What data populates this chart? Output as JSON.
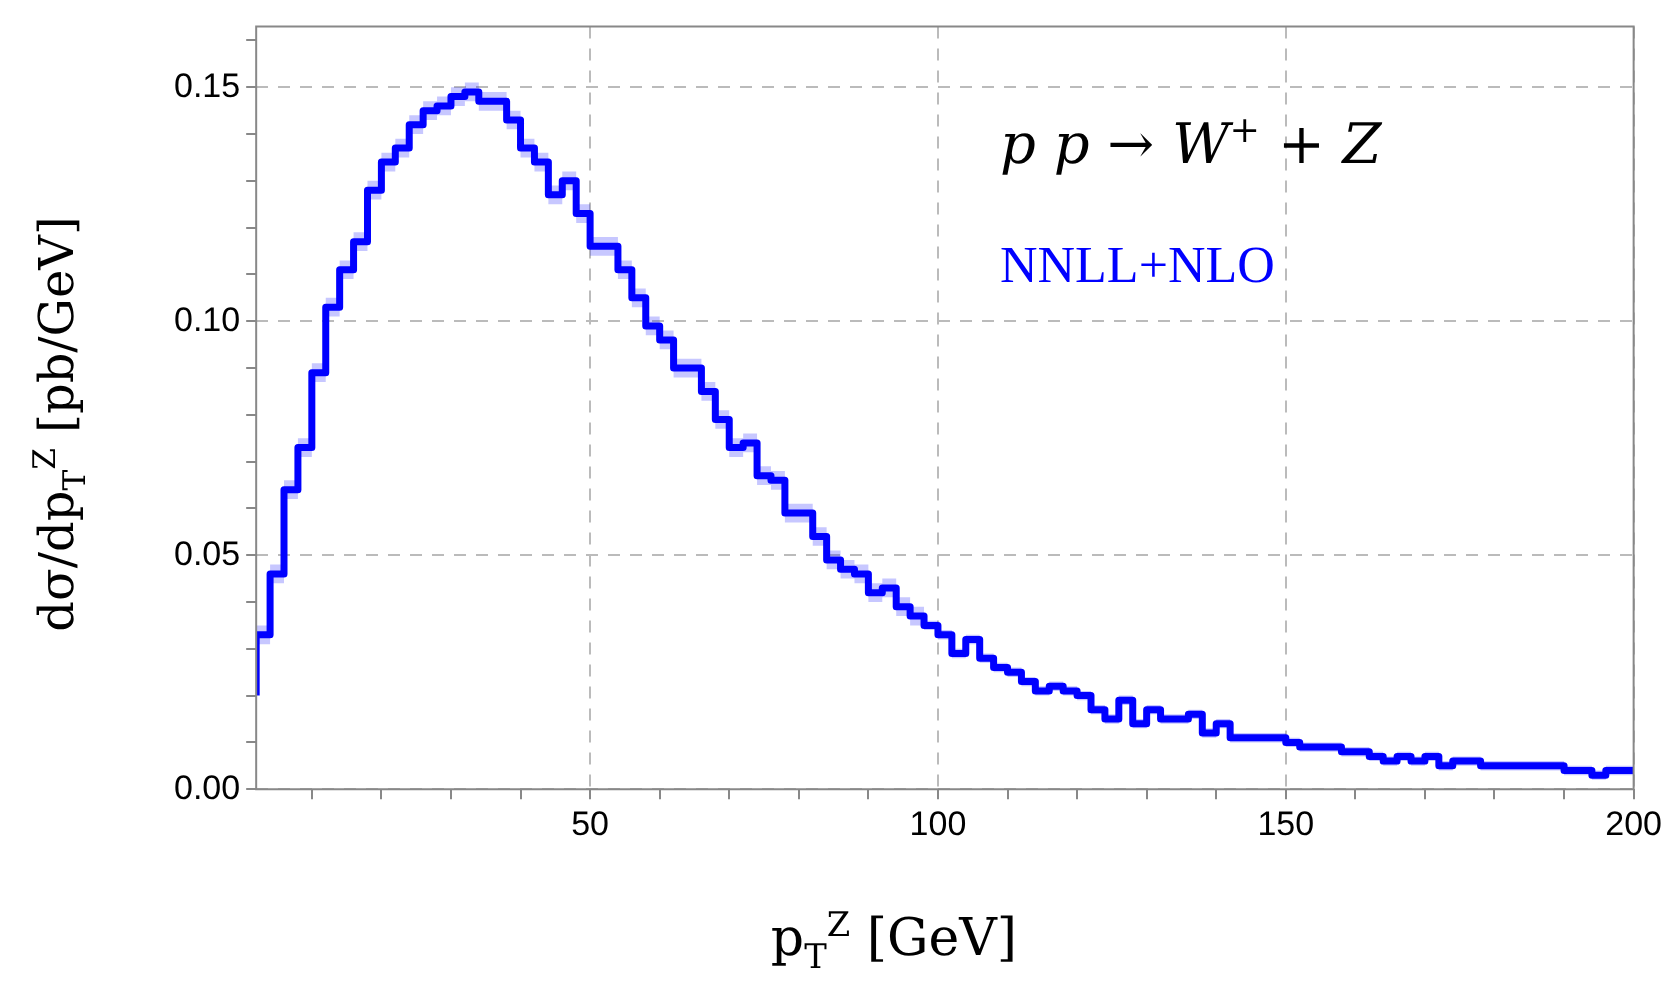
{
  "chart_data": {
    "type": "step",
    "xlabel": "p$_{T}$$^{Z}$ [GeV]",
    "ylabel": "dσ/dp$_{T}$$^{Z}$ [pb/GeV]",
    "annotations": [
      "p p → W$^{+}$ + Z"
    ],
    "legend": "top right",
    "x": [
      2,
      4,
      6,
      8,
      10,
      12,
      14,
      16,
      18,
      20,
      22,
      24,
      26,
      28,
      30,
      32,
      34,
      36,
      38,
      40,
      42,
      44,
      46,
      48,
      50,
      52,
      54,
      56,
      58,
      60,
      62,
      64,
      66,
      68,
      70,
      72,
      74,
      76,
      78,
      80,
      82,
      84,
      86,
      88,
      90,
      92,
      94,
      96,
      98,
      100,
      102,
      104,
      106,
      108,
      110,
      112,
      114,
      116,
      118,
      120,
      122,
      124,
      126,
      128,
      130,
      132,
      134,
      136,
      138,
      140,
      142,
      144,
      146,
      148,
      150,
      152,
      154,
      156,
      158,
      160,
      162,
      164,
      166,
      168,
      170,
      172,
      174,
      176,
      178,
      180,
      182,
      184,
      186,
      188,
      190,
      192,
      194,
      196,
      198,
      200
    ],
    "series": [
      {
        "name": "NNLL+NLO",
        "color": "#0000ff",
        "values": [
          0.02,
          0.033,
          0.046,
          0.064,
          0.073,
          0.089,
          0.103,
          0.111,
          0.117,
          0.128,
          0.134,
          0.137,
          0.142,
          0.145,
          0.146,
          0.148,
          0.149,
          0.147,
          0.147,
          0.143,
          0.137,
          0.134,
          0.127,
          0.13,
          0.123,
          0.116,
          0.116,
          0.111,
          0.105,
          0.099,
          0.096,
          0.09,
          0.09,
          0.085,
          0.079,
          0.073,
          0.074,
          0.067,
          0.066,
          0.059,
          0.059,
          0.054,
          0.049,
          0.047,
          0.046,
          0.042,
          0.043,
          0.039,
          0.037,
          0.035,
          0.033,
          0.029,
          0.032,
          0.028,
          0.026,
          0.025,
          0.023,
          0.021,
          0.022,
          0.021,
          0.02,
          0.017,
          0.015,
          0.019,
          0.014,
          0.017,
          0.015,
          0.015,
          0.016,
          0.012,
          0.014,
          0.011,
          0.011,
          0.011,
          0.011,
          0.01,
          0.009,
          0.009,
          0.009,
          0.008,
          0.008,
          0.007,
          0.006,
          0.007,
          0.006,
          0.007,
          0.005,
          0.006,
          0.006,
          0.005,
          0.005,
          0.005,
          0.005,
          0.005,
          0.005,
          0.004,
          0.004,
          0.003,
          0.004,
          0.004
        ],
        "lower": [
          0.018,
          0.031,
          0.044,
          0.062,
          0.071,
          0.087,
          0.101,
          0.109,
          0.115,
          0.126,
          0.132,
          0.135,
          0.14,
          0.143,
          0.144,
          0.146,
          0.147,
          0.145,
          0.145,
          0.141,
          0.135,
          0.132,
          0.125,
          0.128,
          0.121,
          0.114,
          0.114,
          0.109,
          0.103,
          0.097,
          0.094,
          0.088,
          0.088,
          0.083,
          0.077,
          0.071,
          0.072,
          0.065,
          0.064,
          0.057,
          0.057,
          0.052,
          0.047,
          0.045,
          0.044,
          0.04,
          0.041,
          0.037,
          0.035,
          0.034,
          0.032,
          0.028,
          0.031,
          0.027,
          0.025,
          0.024,
          0.022,
          0.02,
          0.021,
          0.02,
          0.019,
          0.016,
          0.014,
          0.018,
          0.013,
          0.016,
          0.014,
          0.014,
          0.015,
          0.011,
          0.013,
          0.01,
          0.01,
          0.01,
          0.01,
          0.009,
          0.008,
          0.008,
          0.008,
          0.007,
          0.007,
          0.006,
          0.005,
          0.006,
          0.005,
          0.006,
          0.004,
          0.005,
          0.005,
          0.004,
          0.004,
          0.004,
          0.004,
          0.004,
          0.004,
          0.003,
          0.003,
          0.002,
          0.003,
          0.003
        ],
        "upper": [
          0.022,
          0.035,
          0.048,
          0.066,
          0.075,
          0.091,
          0.105,
          0.113,
          0.119,
          0.13,
          0.136,
          0.139,
          0.144,
          0.147,
          0.148,
          0.15,
          0.151,
          0.149,
          0.149,
          0.145,
          0.139,
          0.136,
          0.129,
          0.132,
          0.125,
          0.118,
          0.118,
          0.113,
          0.107,
          0.101,
          0.098,
          0.092,
          0.092,
          0.087,
          0.081,
          0.075,
          0.076,
          0.069,
          0.068,
          0.061,
          0.061,
          0.056,
          0.051,
          0.049,
          0.048,
          0.044,
          0.045,
          0.041,
          0.039,
          0.036,
          0.034,
          0.03,
          0.033,
          0.029,
          0.027,
          0.026,
          0.024,
          0.022,
          0.023,
          0.022,
          0.021,
          0.018,
          0.016,
          0.02,
          0.015,
          0.018,
          0.016,
          0.016,
          0.017,
          0.013,
          0.015,
          0.012,
          0.012,
          0.012,
          0.012,
          0.011,
          0.01,
          0.01,
          0.01,
          0.009,
          0.009,
          0.008,
          0.007,
          0.008,
          0.007,
          0.008,
          0.006,
          0.007,
          0.007,
          0.006,
          0.006,
          0.006,
          0.006,
          0.006,
          0.006,
          0.005,
          0.005,
          0.004,
          0.005,
          0.005
        ]
      }
    ],
    "xlim": [
      2,
      200
    ],
    "xticks": [
      {
        "value": 10,
        "label": null
      },
      {
        "value": 20,
        "label": null
      },
      {
        "value": 30,
        "label": null
      },
      {
        "value": 40,
        "label": null
      },
      50,
      {
        "value": 60,
        "label": null
      },
      {
        "value": 70,
        "label": null
      },
      {
        "value": 80,
        "label": null
      },
      {
        "value": 90,
        "label": null
      },
      100,
      {
        "value": 110,
        "label": null
      },
      {
        "value": 120,
        "label": null
      },
      {
        "value": 130,
        "label": null
      },
      {
        "value": 140,
        "label": null
      },
      150,
      {
        "value": 160,
        "label": null
      },
      {
        "value": 170,
        "label": null
      },
      {
        "value": 180,
        "label": null
      },
      {
        "value": 190,
        "label": null
      },
      200
    ],
    "ylim": [
      0,
      0.163
    ],
    "yticks": [
      {
        "value": 0,
        "label": "0.00"
      },
      {
        "value": 0.01,
        "label": null
      },
      {
        "value": 0.02,
        "label": null
      },
      {
        "value": 0.03,
        "label": null
      },
      {
        "value": 0.04,
        "label": null
      },
      {
        "value": 0.05,
        "label": "0.05"
      },
      {
        "value": 0.06,
        "label": null
      },
      {
        "value": 0.07,
        "label": null
      },
      {
        "value": 0.08,
        "label": null
      },
      {
        "value": 0.09,
        "label": null
      },
      {
        "value": 0.1,
        "label": "0.10"
      },
      {
        "value": 0.11,
        "label": null
      },
      {
        "value": 0.12,
        "label": null
      },
      {
        "value": 0.13,
        "label": null
      },
      {
        "value": 0.14,
        "label": null
      },
      {
        "value": 0.15,
        "label": "0.15"
      },
      {
        "value": 0.16,
        "label": null
      }
    ],
    "grid": true
  }
}
